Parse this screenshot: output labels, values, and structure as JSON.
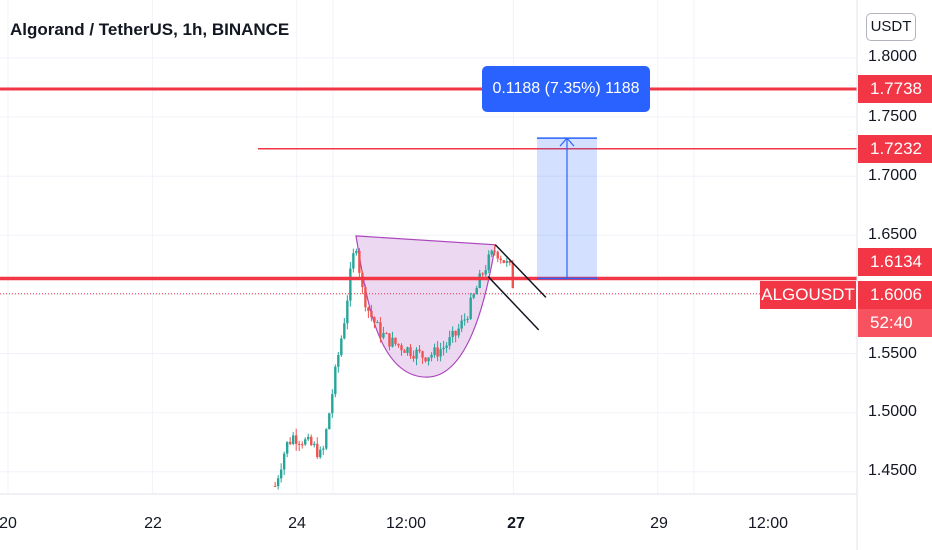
{
  "header": {
    "title": "Algorand / TetherUS, 1h, BINANCE"
  },
  "price_axis": {
    "unit": "USDT",
    "ticks": [
      "1.8000",
      "1.7500",
      "1.7000",
      "1.6500",
      "1.5500",
      "1.5000",
      "1.4500"
    ]
  },
  "time_axis": {
    "ticks": [
      "20",
      "22",
      "24",
      "12:00",
      "27",
      "29",
      "12:00"
    ]
  },
  "levels": {
    "level_top": "1.7738",
    "level_mid": "1.7232",
    "level_support": "1.6134"
  },
  "last_price": {
    "symbol": "ALGOUSDT",
    "price": "1.6006",
    "countdown": "52:40"
  },
  "measure": {
    "label": "0.1188 (7.35%) 1188"
  },
  "colors": {
    "up": "#26a69a",
    "down": "#ef5350",
    "level": "#f23645",
    "measure": "#2962ff",
    "cup": "#e1bee7"
  },
  "chart_data": {
    "type": "candlestick",
    "title": "Algorand / TetherUS, 1h, BINANCE",
    "ylabel": "USDT",
    "ylim": [
      1.43,
      1.82
    ],
    "xrange_days": [
      20,
      30.9
    ],
    "horizontal_levels": [
      1.7738,
      1.7232,
      1.6134
    ],
    "last_price": 1.6006,
    "measure": {
      "from": 1.6134,
      "to": 1.7322,
      "change": 0.1188,
      "percent": 7.35
    },
    "cup": {
      "left_rim": 1.6495,
      "bottom": 1.53,
      "right_rim": 1.642
    },
    "price_path": [
      {
        "t": 23.7,
        "p": 1.438
      },
      {
        "t": 23.85,
        "p": 1.472
      },
      {
        "t": 23.95,
        "p": 1.48
      },
      {
        "t": 24.1,
        "p": 1.476
      },
      {
        "t": 24.25,
        "p": 1.47
      },
      {
        "t": 24.35,
        "p": 1.462
      },
      {
        "t": 24.45,
        "p": 1.5
      },
      {
        "t": 24.55,
        "p": 1.54
      },
      {
        "t": 24.65,
        "p": 1.575
      },
      {
        "t": 24.75,
        "p": 1.62
      },
      {
        "t": 24.82,
        "p": 1.645
      },
      {
        "t": 24.9,
        "p": 1.605
      },
      {
        "t": 25.0,
        "p": 1.585
      },
      {
        "t": 25.15,
        "p": 1.568
      },
      {
        "t": 25.3,
        "p": 1.56
      },
      {
        "t": 25.45,
        "p": 1.556
      },
      {
        "t": 25.6,
        "p": 1.552
      },
      {
        "t": 25.75,
        "p": 1.548
      },
      {
        "t": 25.9,
        "p": 1.55
      },
      {
        "t": 26.05,
        "p": 1.556
      },
      {
        "t": 26.2,
        "p": 1.566
      },
      {
        "t": 26.35,
        "p": 1.582
      },
      {
        "t": 26.45,
        "p": 1.598
      },
      {
        "t": 26.55,
        "p": 1.615
      },
      {
        "t": 26.65,
        "p": 1.628
      },
      {
        "t": 26.75,
        "p": 1.638
      },
      {
        "t": 26.85,
        "p": 1.63
      },
      {
        "t": 26.95,
        "p": 1.622
      },
      {
        "t": 27.0,
        "p": 1.606
      }
    ]
  }
}
